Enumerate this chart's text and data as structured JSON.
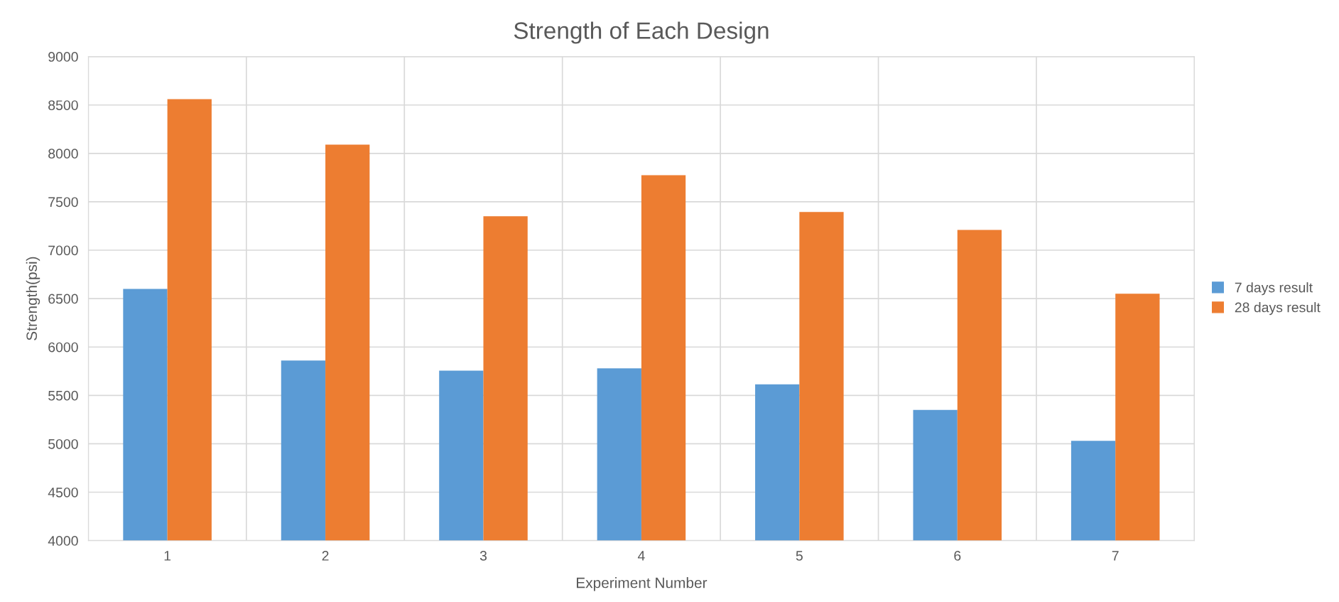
{
  "chart_data": {
    "type": "bar",
    "title": "Strength of Each Design",
    "xlabel": "Experiment Number",
    "ylabel": "Strength(psi)",
    "categories": [
      "1",
      "2",
      "3",
      "4",
      "5",
      "6",
      "7"
    ],
    "series": [
      {
        "name": "7 days result",
        "color": "#5b9bd5",
        "values": [
          6600,
          5860,
          5755,
          5780,
          5615,
          5350,
          5030
        ]
      },
      {
        "name": "28 days result",
        "color": "#ed7d31",
        "values": [
          8560,
          8090,
          7350,
          7775,
          7395,
          7210,
          6550
        ]
      }
    ],
    "ylim": [
      4000,
      9000
    ],
    "yticks": [
      4000,
      4500,
      5000,
      5500,
      6000,
      6500,
      7000,
      7500,
      8000,
      8500,
      9000
    ],
    "grid": true,
    "legend": "right"
  }
}
